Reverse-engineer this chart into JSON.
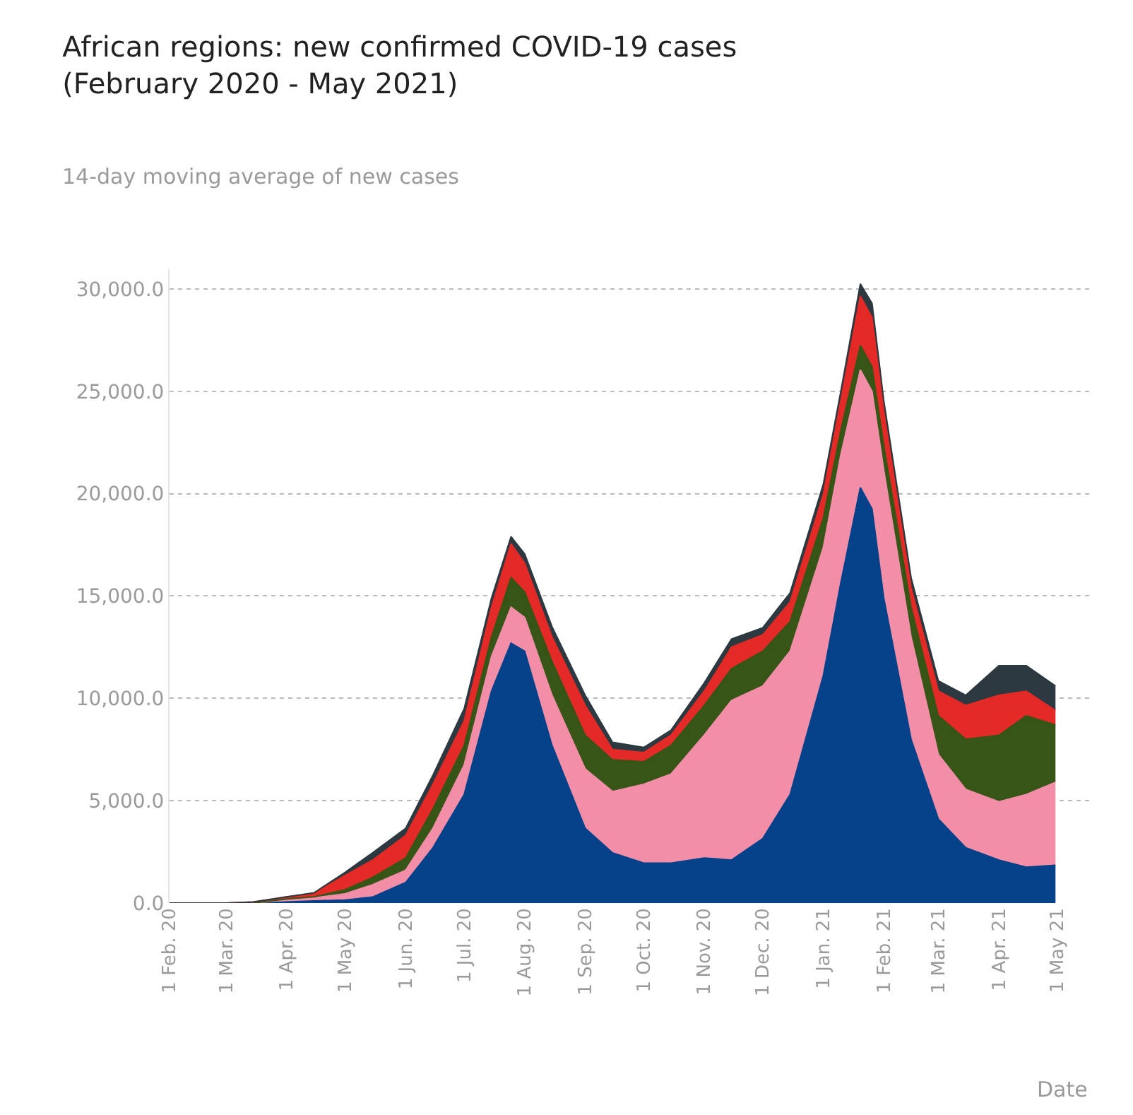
{
  "chart_data": {
    "type": "area",
    "stacked": true,
    "title": "African regions: new confirmed COVID-19 cases\n(February 2020 - May 2021)",
    "subtitle": "14-day moving average of new cases",
    "xlabel": "Date",
    "x": [
      "2020-02-01",
      "2020-03-01",
      "2020-03-15",
      "2020-04-01",
      "2020-04-15",
      "2020-05-01",
      "2020-05-15",
      "2020-06-01",
      "2020-06-15",
      "2020-07-01",
      "2020-07-15",
      "2020-07-25",
      "2020-08-01",
      "2020-08-15",
      "2020-09-01",
      "2020-09-15",
      "2020-10-01",
      "2020-10-15",
      "2020-11-01",
      "2020-11-15",
      "2020-12-01",
      "2020-12-15",
      "2021-01-01",
      "2021-01-10",
      "2021-01-20",
      "2021-01-26",
      "2021-02-01",
      "2021-02-15",
      "2021-03-01",
      "2021-03-15",
      "2021-04-01",
      "2021-04-15",
      "2021-04-30"
    ],
    "series": [
      {
        "color": "#054289",
        "values": [
          0,
          0,
          0,
          50,
          100,
          150,
          290,
          1000,
          2700,
          5300,
          10350,
          12700,
          12300,
          7700,
          3650,
          2450,
          1950,
          1950,
          2200,
          2100,
          3150,
          5300,
          11100,
          15650,
          20300,
          19250,
          14900,
          8000,
          4100,
          2700,
          2100,
          1750,
          1850
        ]
      },
      {
        "color": "#f28ea8",
        "values": [
          0,
          0,
          0,
          100,
          150,
          300,
          600,
          600,
          950,
          1450,
          1700,
          1750,
          1650,
          2450,
          2900,
          3000,
          3850,
          4350,
          6000,
          7800,
          7450,
          7000,
          6250,
          6250,
          5750,
          5750,
          6250,
          5000,
          3150,
          2850,
          2850,
          3550,
          4050
        ]
      },
      {
        "color": "#365516",
        "values": [
          0,
          0,
          0,
          50,
          50,
          200,
          360,
          600,
          950,
          950,
          950,
          1450,
          1250,
          1650,
          1650,
          1550,
          1100,
          1400,
          1450,
          1550,
          1700,
          1450,
          1450,
          1200,
          1200,
          1200,
          1200,
          1450,
          1900,
          2450,
          3250,
          3850,
          2800
        ]
      },
      {
        "color": "#e42a26",
        "values": [
          0,
          0,
          50,
          100,
          150,
          700,
          840,
          1100,
          1200,
          1200,
          1450,
          1650,
          1400,
          1200,
          1450,
          500,
          450,
          500,
          700,
          1050,
          800,
          950,
          1150,
          1450,
          2400,
          2400,
          1700,
          950,
          1200,
          1650,
          1950,
          1200,
          700
        ]
      },
      {
        "color": "#2c3940",
        "values": [
          0,
          0,
          0,
          0,
          50,
          150,
          360,
          350,
          450,
          600,
          450,
          350,
          450,
          500,
          500,
          350,
          250,
          250,
          400,
          400,
          350,
          450,
          500,
          450,
          600,
          700,
          500,
          500,
          500,
          500,
          1450,
          1250,
          1200
        ]
      }
    ],
    "ylim": [
      0,
      31000
    ],
    "yticks": [
      {
        "value": 0,
        "label": "0.0"
      },
      {
        "value": 5000,
        "label": "5,000.0"
      },
      {
        "value": 10000,
        "label": "10,000.0"
      },
      {
        "value": 15000,
        "label": "15,000.0"
      },
      {
        "value": 20000,
        "label": "20,000.0"
      },
      {
        "value": 25000,
        "label": "25,000.0"
      },
      {
        "value": 30000,
        "label": "30,000.0"
      }
    ],
    "xlim": [
      "2020-02-01",
      "2021-05-18"
    ],
    "xticks": [
      {
        "value": "2020-02-01",
        "label": "1 Feb. 20"
      },
      {
        "value": "2020-03-01",
        "label": "1 Mar. 20"
      },
      {
        "value": "2020-04-01",
        "label": "1 Apr. 20"
      },
      {
        "value": "2020-05-01",
        "label": "1 May 20"
      },
      {
        "value": "2020-06-01",
        "label": "1 Jun. 20"
      },
      {
        "value": "2020-07-01",
        "label": "1 Jul. 20"
      },
      {
        "value": "2020-08-01",
        "label": "1 Aug. 20"
      },
      {
        "value": "2020-09-01",
        "label": "1 Sep. 20"
      },
      {
        "value": "2020-10-01",
        "label": "1 Oct. 20"
      },
      {
        "value": "2020-11-01",
        "label": "1 Nov. 20"
      },
      {
        "value": "2020-12-01",
        "label": "1 Dec. 20"
      },
      {
        "value": "2021-01-01",
        "label": "1 Jan. 21"
      },
      {
        "value": "2021-02-01",
        "label": "1 Feb. 21"
      },
      {
        "value": "2021-03-01",
        "label": "1 Mar. 21"
      },
      {
        "value": "2021-04-01",
        "label": "1 Apr. 21"
      },
      {
        "value": "2021-05-01",
        "label": "1 May 21"
      }
    ],
    "grid": "y"
  }
}
